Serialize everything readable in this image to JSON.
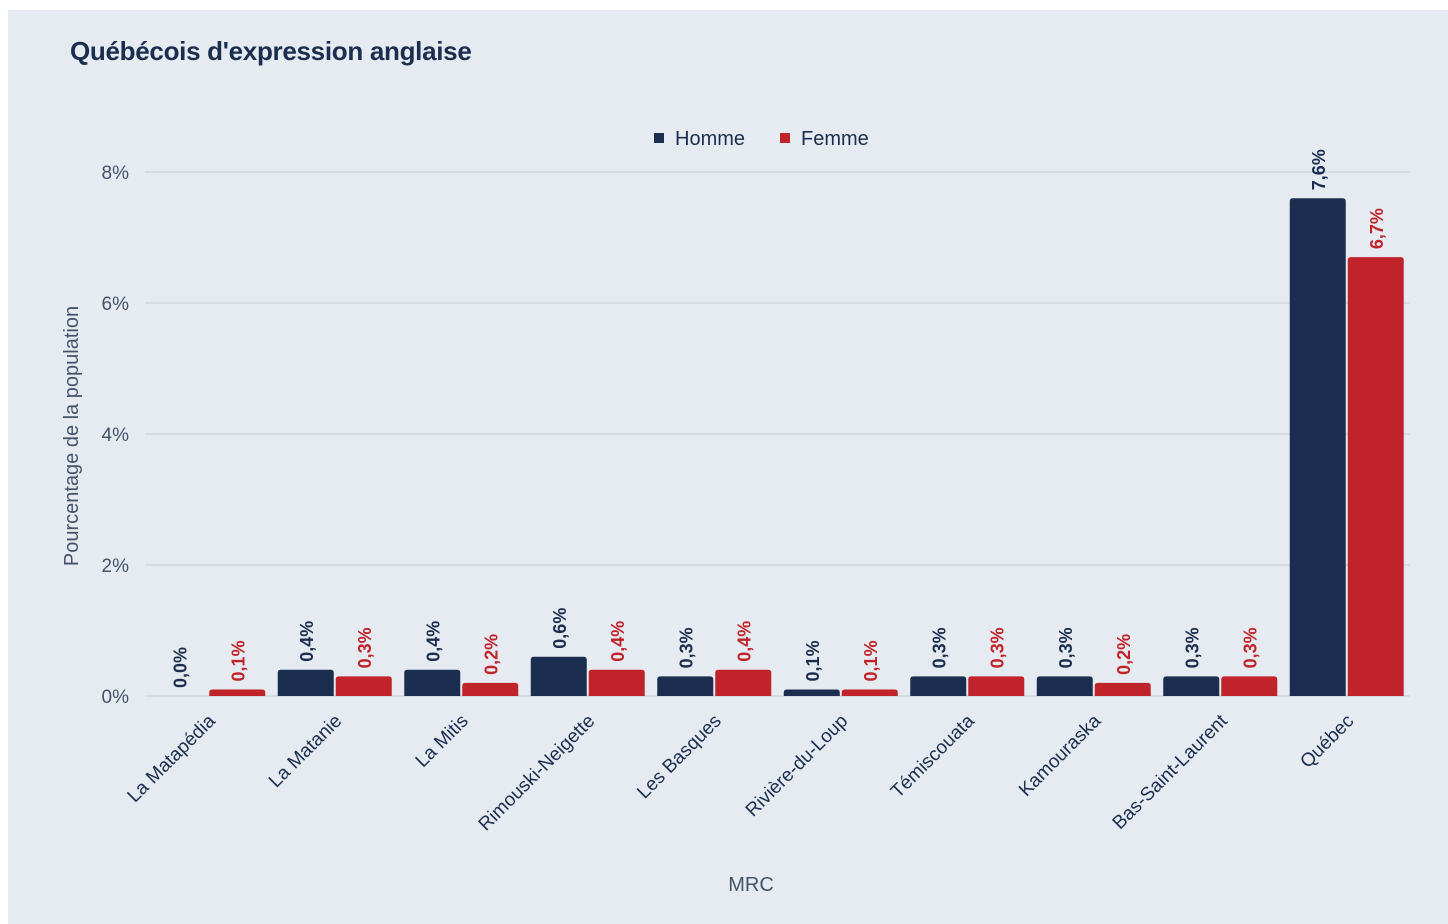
{
  "title": "Québécois d'expression anglaise",
  "colors": {
    "background": "#e5ebf0",
    "homme": "#1b2e4f",
    "femme": "#c1232a",
    "grid": "#c5ccd5",
    "text": "#1b2e4f"
  },
  "chart_data": {
    "type": "bar",
    "title": "Québécois d'expression anglaise",
    "xlabel": "MRC",
    "ylabel": "Pourcentage de la population",
    "ylim": [
      0,
      8
    ],
    "yticks": [
      "0%",
      "2%",
      "4%",
      "6%",
      "8%"
    ],
    "ytick_values": [
      0,
      2,
      4,
      6,
      8
    ],
    "grid": true,
    "legend_position": "top-center",
    "categories": [
      "La Matapédia",
      "La Matanie",
      "La Mitis",
      "Rimouski-Neigette",
      "Les Basques",
      "Rivière-du-Loup",
      "Témiscouata",
      "Kamouraska",
      "Bas-Saint-Laurent",
      "Québec"
    ],
    "series": [
      {
        "name": "Homme",
        "color": "#1b2e4f",
        "values": [
          0.0,
          0.4,
          0.4,
          0.6,
          0.3,
          0.1,
          0.3,
          0.3,
          0.3,
          7.6
        ],
        "labels": [
          "0,0%",
          "0,4%",
          "0,4%",
          "0,6%",
          "0,3%",
          "0,1%",
          "0,3%",
          "0,3%",
          "0,3%",
          "7,6%"
        ]
      },
      {
        "name": "Femme",
        "color": "#c1232a",
        "values": [
          0.1,
          0.3,
          0.2,
          0.4,
          0.4,
          0.1,
          0.3,
          0.2,
          0.3,
          6.7
        ],
        "labels": [
          "0,1%",
          "0,3%",
          "0,2%",
          "0,4%",
          "0,4%",
          "0,1%",
          "0,3%",
          "0,2%",
          "0,3%",
          "6,7%"
        ]
      }
    ]
  }
}
